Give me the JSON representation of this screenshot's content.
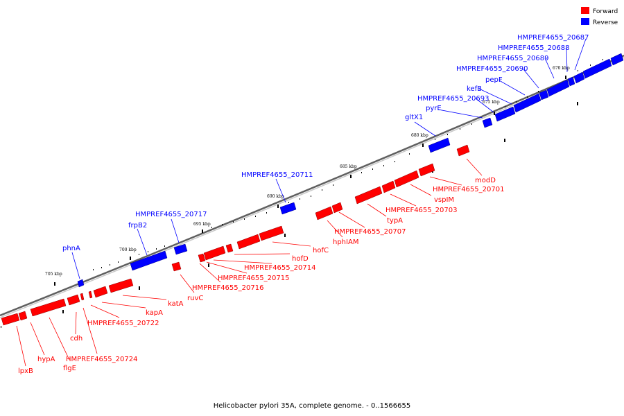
{
  "caption": "Helicobacter pylori 35A, complete genome. - 0..1566655",
  "legend": [
    {
      "label": "Forward",
      "color": "#ff0000"
    },
    {
      "label": "Reverse",
      "color": "#0000ff"
    }
  ],
  "colors": {
    "forward": "#ff0000",
    "reverse": "#0000ff",
    "axis": "#808080"
  },
  "ticks": [
    {
      "label": "705 kbp"
    },
    {
      "label": "700 kbp"
    },
    {
      "label": "695 kbp"
    },
    {
      "label": "690 kbp"
    },
    {
      "label": "685 kbp"
    },
    {
      "label": "680 kbp"
    },
    {
      "label": "675 kbp"
    },
    {
      "label": "670 kbp"
    }
  ],
  "genes": [
    {
      "name": "lpxB",
      "strand": "forward"
    },
    {
      "name": "hypA",
      "strand": "forward"
    },
    {
      "name": "flgE",
      "strand": "forward"
    },
    {
      "name": "cdh",
      "strand": "forward"
    },
    {
      "name": "HMPREF4655_20724",
      "strand": "forward"
    },
    {
      "name": "HMPREF4655_20722",
      "strand": "forward"
    },
    {
      "name": "kapA",
      "strand": "forward"
    },
    {
      "name": "katA",
      "strand": "forward"
    },
    {
      "name": "ruvC",
      "strand": "forward"
    },
    {
      "name": "HMPREF4655_20716",
      "strand": "forward"
    },
    {
      "name": "HMPREF4655_20715",
      "strand": "forward"
    },
    {
      "name": "HMPREF4655_20714",
      "strand": "forward"
    },
    {
      "name": "hofD",
      "strand": "forward"
    },
    {
      "name": "hofC",
      "strand": "forward"
    },
    {
      "name": "hphIAM",
      "strand": "forward"
    },
    {
      "name": "HMPREF4655_20707",
      "strand": "forward"
    },
    {
      "name": "typA",
      "strand": "forward"
    },
    {
      "name": "HMPREF4655_20703",
      "strand": "forward"
    },
    {
      "name": "vspIM",
      "strand": "forward"
    },
    {
      "name": "HMPREF4655_20701",
      "strand": "forward"
    },
    {
      "name": "modD",
      "strand": "forward"
    },
    {
      "name": "phnA",
      "strand": "reverse"
    },
    {
      "name": "frpB2",
      "strand": "reverse"
    },
    {
      "name": "HMPREF4655_20717",
      "strand": "reverse"
    },
    {
      "name": "HMPREF4655_20711",
      "strand": "reverse"
    },
    {
      "name": "gltX1",
      "strand": "reverse"
    },
    {
      "name": "pyrE",
      "strand": "reverse"
    },
    {
      "name": "HMPREF4655_20693",
      "strand": "reverse"
    },
    {
      "name": "kefB",
      "strand": "reverse"
    },
    {
      "name": "pepF",
      "strand": "reverse"
    },
    {
      "name": "HMPREF4655_20690",
      "strand": "reverse"
    },
    {
      "name": "HMPREF4655_20689",
      "strand": "reverse"
    },
    {
      "name": "HMPREF4655_20688",
      "strand": "reverse"
    },
    {
      "name": "HMPREF4655_20687",
      "strand": "reverse"
    }
  ]
}
